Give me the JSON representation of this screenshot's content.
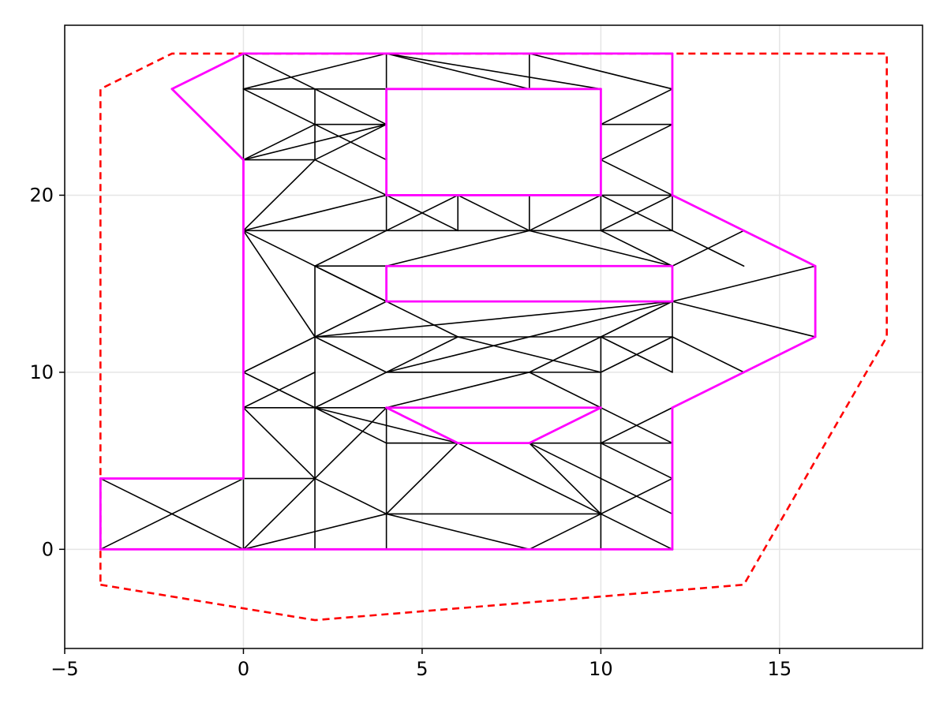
{
  "chart_data": {
    "type": "scatter",
    "title": "",
    "xlabel": "",
    "ylabel": "",
    "xlim": [
      -5,
      19
    ],
    "ylim": [
      -5.6,
      29.6
    ],
    "grid": true,
    "x_ticks": [
      -5,
      0,
      5,
      10,
      15
    ],
    "y_ticks": [
      0,
      10,
      20
    ],
    "x_tick_labels": [
      "−5",
      "0",
      "5",
      "10",
      "15"
    ],
    "y_tick_labels": [
      "0",
      "10",
      "20"
    ],
    "colors": {
      "mesh": "#000000",
      "boundary": "#ff00ff",
      "hull": "#ff0000",
      "grid": "#e5e5e5"
    },
    "triangle_edges": [
      [
        [
          4,
          28
        ],
        [
          10,
          26
        ]
      ],
      [
        [
          0,
          26
        ],
        [
          4,
          28
        ]
      ],
      [
        [
          4,
          28
        ],
        [
          8,
          26
        ]
      ],
      [
        [
          8,
          28
        ],
        [
          12,
          26
        ]
      ],
      [
        [
          0,
          28
        ],
        [
          2,
          26
        ]
      ],
      [
        [
          2,
          26
        ],
        [
          4,
          24
        ]
      ],
      [
        [
          2,
          24
        ],
        [
          4,
          22
        ]
      ],
      [
        [
          0,
          26
        ],
        [
          2,
          24
        ]
      ],
      [
        [
          0,
          22
        ],
        [
          2,
          24
        ]
      ],
      [
        [
          2,
          22
        ],
        [
          4,
          20
        ]
      ],
      [
        [
          2,
          22
        ],
        [
          4,
          24
        ]
      ],
      [
        [
          0,
          22
        ],
        [
          4,
          24
        ]
      ],
      [
        [
          0,
          18
        ],
        [
          2,
          22
        ]
      ],
      [
        [
          0,
          18
        ],
        [
          4,
          20
        ]
      ],
      [
        [
          4,
          18
        ],
        [
          6,
          20
        ]
      ],
      [
        [
          6,
          20
        ],
        [
          8,
          18
        ]
      ],
      [
        [
          4,
          20
        ],
        [
          6,
          18
        ]
      ],
      [
        [
          8,
          18
        ],
        [
          10,
          20
        ]
      ],
      [
        [
          10,
          20
        ],
        [
          12,
          18
        ]
      ],
      [
        [
          10,
          22
        ],
        [
          12,
          20
        ]
      ],
      [
        [
          10,
          22
        ],
        [
          12,
          24
        ]
      ],
      [
        [
          10,
          24
        ],
        [
          12,
          26
        ]
      ],
      [
        [
          10,
          18
        ],
        [
          12,
          20
        ]
      ],
      [
        [
          10,
          18
        ],
        [
          12,
          16
        ]
      ],
      [
        [
          8,
          18
        ],
        [
          12,
          16
        ]
      ],
      [
        [
          12,
          16
        ],
        [
          14,
          18
        ]
      ],
      [
        [
          12,
          18
        ],
        [
          14,
          16
        ]
      ],
      [
        [
          12,
          14
        ],
        [
          16,
          16
        ]
      ],
      [
        [
          12,
          14
        ],
        [
          16,
          12
        ]
      ],
      [
        [
          12,
          12
        ],
        [
          14,
          10
        ]
      ],
      [
        [
          4,
          16
        ],
        [
          8,
          18
        ]
      ],
      [
        [
          2,
          16
        ],
        [
          4,
          18
        ]
      ],
      [
        [
          0,
          18
        ],
        [
          2,
          12
        ]
      ],
      [
        [
          0,
          18
        ],
        [
          4,
          14
        ]
      ],
      [
        [
          2,
          12
        ],
        [
          4,
          14
        ]
      ],
      [
        [
          2,
          12
        ],
        [
          12,
          14
        ]
      ],
      [
        [
          2,
          16
        ],
        [
          6,
          12
        ]
      ],
      [
        [
          4,
          10
        ],
        [
          12,
          14
        ]
      ],
      [
        [
          4,
          10
        ],
        [
          6,
          12
        ]
      ],
      [
        [
          6,
          12
        ],
        [
          10,
          10
        ]
      ],
      [
        [
          10,
          12
        ],
        [
          12,
          14
        ]
      ],
      [
        [
          10,
          12
        ],
        [
          12,
          10
        ]
      ],
      [
        [
          10,
          10
        ],
        [
          12,
          12
        ]
      ],
      [
        [
          8,
          10
        ],
        [
          10,
          12
        ]
      ],
      [
        [
          8,
          10
        ],
        [
          10,
          8
        ]
      ],
      [
        [
          4,
          10
        ],
        [
          8,
          10
        ]
      ],
      [
        [
          4,
          8
        ],
        [
          8,
          10
        ]
      ],
      [
        [
          0,
          10
        ],
        [
          2,
          12
        ]
      ],
      [
        [
          0,
          10
        ],
        [
          2,
          8
        ]
      ],
      [
        [
          2,
          12
        ],
        [
          4,
          10
        ]
      ],
      [
        [
          2,
          8
        ],
        [
          4,
          10
        ]
      ],
      [
        [
          2,
          8
        ],
        [
          4,
          6
        ]
      ],
      [
        [
          0,
          8
        ],
        [
          2,
          10
        ]
      ],
      [
        [
          0,
          8
        ],
        [
          2,
          4
        ]
      ],
      [
        [
          2,
          8
        ],
        [
          6,
          6
        ]
      ],
      [
        [
          2,
          4
        ],
        [
          4,
          8
        ]
      ],
      [
        [
          0,
          0
        ],
        [
          2,
          4
        ]
      ],
      [
        [
          2,
          4
        ],
        [
          4,
          2
        ]
      ],
      [
        [
          0,
          0
        ],
        [
          4,
          2
        ]
      ],
      [
        [
          0,
          4
        ],
        [
          2,
          4
        ]
      ],
      [
        [
          -4,
          4
        ],
        [
          0,
          0
        ]
      ],
      [
        [
          -4,
          0
        ],
        [
          0,
          4
        ]
      ],
      [
        [
          4,
          2
        ],
        [
          8,
          0
        ]
      ],
      [
        [
          4,
          6
        ],
        [
          6,
          6
        ]
      ],
      [
        [
          4,
          2
        ],
        [
          6,
          6
        ]
      ],
      [
        [
          6,
          6
        ],
        [
          10,
          2
        ]
      ],
      [
        [
          8,
          6
        ],
        [
          10,
          4
        ]
      ],
      [
        [
          8,
          6
        ],
        [
          10,
          2
        ]
      ],
      [
        [
          10,
          4
        ],
        [
          12,
          2
        ]
      ],
      [
        [
          10,
          2
        ],
        [
          12,
          4
        ]
      ],
      [
        [
          10,
          6
        ],
        [
          12,
          8
        ]
      ],
      [
        [
          10,
          6
        ],
        [
          12,
          4
        ]
      ],
      [
        [
          10,
          8
        ],
        [
          12,
          6
        ]
      ],
      [
        [
          10,
          2
        ],
        [
          12,
          0
        ]
      ],
      [
        [
          8,
          0
        ],
        [
          10,
          2
        ]
      ],
      [
        [
          0,
          28
        ],
        [
          12,
          28
        ]
      ],
      [
        [
          0,
          26
        ],
        [
          4,
          26
        ]
      ],
      [
        [
          8,
          26
        ],
        [
          8,
          28
        ]
      ],
      [
        [
          4,
          28
        ],
        [
          4,
          26
        ]
      ],
      [
        [
          0,
          28
        ],
        [
          0,
          22
        ]
      ],
      [
        [
          2,
          26
        ],
        [
          2,
          22
        ]
      ],
      [
        [
          2,
          24
        ],
        [
          4,
          24
        ]
      ],
      [
        [
          0,
          22
        ],
        [
          2,
          22
        ]
      ],
      [
        [
          0,
          18
        ],
        [
          12,
          18
        ]
      ],
      [
        [
          2,
          16
        ],
        [
          12,
          16
        ]
      ],
      [
        [
          6,
          20
        ],
        [
          6,
          18
        ]
      ],
      [
        [
          4,
          20
        ],
        [
          4,
          18
        ]
      ],
      [
        [
          8,
          20
        ],
        [
          8,
          18
        ]
      ],
      [
        [
          10,
          20
        ],
        [
          10,
          18
        ]
      ],
      [
        [
          12,
          20
        ],
        [
          12,
          18
        ]
      ],
      [
        [
          10,
          24
        ],
        [
          12,
          24
        ]
      ],
      [
        [
          10,
          20
        ],
        [
          12,
          20
        ]
      ],
      [
        [
          12,
          28
        ],
        [
          12,
          24
        ]
      ],
      [
        [
          2,
          16
        ],
        [
          2,
          0
        ]
      ],
      [
        [
          2,
          12
        ],
        [
          12,
          12
        ]
      ],
      [
        [
          4,
          10
        ],
        [
          10,
          10
        ]
      ],
      [
        [
          0,
          8
        ],
        [
          10,
          8
        ]
      ],
      [
        [
          4,
          8
        ],
        [
          4,
          0
        ]
      ],
      [
        [
          4,
          6
        ],
        [
          12,
          6
        ]
      ],
      [
        [
          4,
          2
        ],
        [
          10,
          2
        ]
      ],
      [
        [
          12,
          8
        ],
        [
          12,
          0
        ]
      ],
      [
        [
          10,
          12
        ],
        [
          10,
          0
        ]
      ],
      [
        [
          12,
          16
        ],
        [
          12,
          10
        ]
      ],
      [
        [
          0,
          10
        ],
        [
          0,
          0
        ]
      ]
    ],
    "boundary_edges": [
      [
        [
          -4,
          0
        ],
        [
          12,
          0
        ]
      ],
      [
        [
          12,
          0
        ],
        [
          12,
          8
        ]
      ],
      [
        [
          12,
          8
        ],
        [
          14,
          10
        ]
      ],
      [
        [
          14,
          10
        ],
        [
          16,
          12
        ]
      ],
      [
        [
          16,
          12
        ],
        [
          16,
          16
        ]
      ],
      [
        [
          16,
          16
        ],
        [
          14,
          18
        ]
      ],
      [
        [
          14,
          18
        ],
        [
          12,
          20
        ]
      ],
      [
        [
          12,
          20
        ],
        [
          12,
          28
        ]
      ],
      [
        [
          12,
          28
        ],
        [
          0,
          28
        ]
      ],
      [
        [
          0,
          28
        ],
        [
          -2,
          26
        ]
      ],
      [
        [
          -2,
          26
        ],
        [
          0,
          22
        ]
      ],
      [
        [
          0,
          22
        ],
        [
          0,
          4
        ]
      ],
      [
        [
          0,
          4
        ],
        [
          -4,
          4
        ]
      ],
      [
        [
          -4,
          4
        ],
        [
          -4,
          0
        ]
      ],
      [
        [
          4,
          26
        ],
        [
          10,
          26
        ]
      ],
      [
        [
          10,
          26
        ],
        [
          10,
          20
        ]
      ],
      [
        [
          10,
          20
        ],
        [
          4,
          20
        ]
      ],
      [
        [
          4,
          20
        ],
        [
          4,
          26
        ]
      ],
      [
        [
          4,
          16
        ],
        [
          12,
          16
        ]
      ],
      [
        [
          12,
          16
        ],
        [
          12,
          14
        ]
      ],
      [
        [
          12,
          14
        ],
        [
          4,
          14
        ]
      ],
      [
        [
          4,
          14
        ],
        [
          4,
          16
        ]
      ],
      [
        [
          4,
          8
        ],
        [
          10,
          8
        ]
      ],
      [
        [
          10,
          8
        ],
        [
          8,
          6
        ]
      ],
      [
        [
          8,
          6
        ],
        [
          6,
          6
        ]
      ],
      [
        [
          6,
          6
        ],
        [
          4,
          8
        ]
      ]
    ],
    "hull": [
      [
        -4,
        -2
      ],
      [
        2,
        -4
      ],
      [
        14,
        -2
      ],
      [
        18,
        12
      ],
      [
        18,
        28
      ],
      [
        -2,
        28
      ],
      [
        -4,
        26
      ],
      [
        -4,
        -2
      ]
    ]
  }
}
